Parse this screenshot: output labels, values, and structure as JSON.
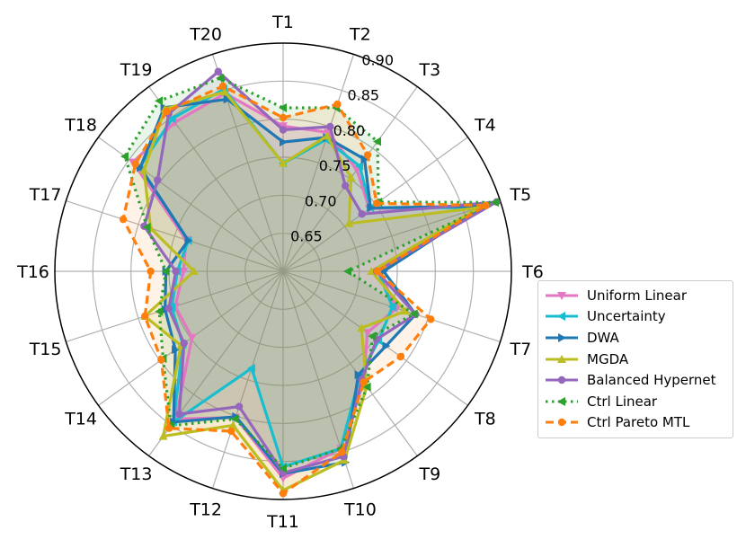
{
  "chart_data": {
    "type": "radar",
    "categories": [
      "T1",
      "T2",
      "T3",
      "T4",
      "T5",
      "T6",
      "T7",
      "T8",
      "T9",
      "T10",
      "T11",
      "T12",
      "T13",
      "T14",
      "T15",
      "T16",
      "T17",
      "T18",
      "T19",
      "T20"
    ],
    "radial_ticks": [
      "0.65",
      "0.70",
      "0.75",
      "0.80",
      "0.85",
      "0.90"
    ],
    "rlim": [
      0.6,
      0.9
    ],
    "series": [
      {
        "name": "Uniform Linear",
        "color": "#e377c2",
        "dash": "solid",
        "marker": "triangle-down",
        "values": [
          0.791,
          0.792,
          0.765,
          0.74,
          0.875,
          0.726,
          0.757,
          0.737,
          0.78,
          0.845,
          0.872,
          0.802,
          0.84,
          0.748,
          0.749,
          0.731,
          0.734,
          0.844,
          0.842,
          0.846
        ]
      },
      {
        "name": "Uncertainty",
        "color": "#17becf",
        "dash": "solid",
        "marker": "triangle-left",
        "values": [
          0.742,
          0.782,
          0.771,
          0.742,
          0.871,
          0.725,
          0.751,
          0.755,
          0.771,
          0.845,
          0.857,
          0.734,
          0.845,
          0.763,
          0.754,
          0.739,
          0.731,
          0.833,
          0.848,
          0.852
        ]
      },
      {
        "name": "DWA",
        "color": "#1f77b4",
        "dash": "solid",
        "marker": "triangle-right",
        "values": [
          0.77,
          0.785,
          0.782,
          0.742,
          0.877,
          0.732,
          0.783,
          0.767,
          0.768,
          0.864,
          0.866,
          0.801,
          0.845,
          0.775,
          0.763,
          0.754,
          0.731,
          0.832,
          0.866,
          0.838
        ]
      },
      {
        "name": "MGDA",
        "color": "#bcbd22",
        "dash": "solid",
        "marker": "triangle-up",
        "values": [
          0.742,
          0.787,
          0.752,
          0.707,
          0.871,
          0.716,
          0.769,
          0.727,
          0.787,
          0.861,
          0.888,
          0.813,
          0.868,
          0.766,
          0.791,
          0.717,
          0.783,
          0.826,
          0.864,
          0.848
        ]
      },
      {
        "name": "Balanced Hypernet",
        "color": "#9467bd",
        "dash": "solid",
        "marker": "circle",
        "values": [
          0.786,
          0.8,
          0.739,
          0.728,
          0.895,
          0.723,
          0.783,
          0.752,
          0.776,
          0.856,
          0.865,
          0.787,
          0.832,
          0.761,
          0.758,
          0.741,
          0.792,
          0.804,
          0.856,
          0.876
        ]
      },
      {
        "name": "Ctrl Linear",
        "color": "#2ca02c",
        "dash": "dotted",
        "marker": "triangle-left",
        "values": [
          0.815,
          0.826,
          0.811,
          0.755,
          0.893,
          0.685,
          0.781,
          0.745,
          0.788,
          0.845,
          0.859,
          0.804,
          0.851,
          0.795,
          0.771,
          0.754,
          0.788,
          0.857,
          0.877,
          0.867
        ]
      },
      {
        "name": "Ctrl Pareto MTL",
        "color": "#ff7f0e",
        "dash": "dashed",
        "marker": "circle",
        "values": [
          0.802,
          0.831,
          0.789,
          0.752,
          0.88,
          0.724,
          0.804,
          0.791,
          0.78,
          0.85,
          0.892,
          0.821,
          0.855,
          0.798,
          0.791,
          0.774,
          0.821,
          0.84,
          0.86,
          0.856
        ]
      }
    ]
  }
}
